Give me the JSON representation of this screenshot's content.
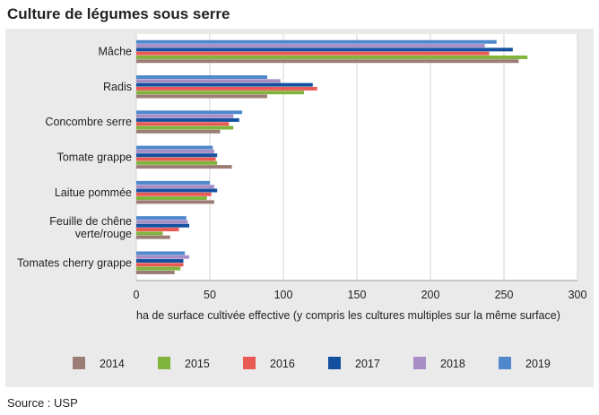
{
  "title": "Culture de légumes sous serre",
  "source": "Source : USP",
  "chart_data": {
    "type": "bar",
    "orientation": "horizontal",
    "title": "Culture de légumes sous serre",
    "xlabel": "ha de surface cultivée effective (y compris les cultures multiples sur la même surface)",
    "ylabel": "",
    "xlim": [
      0,
      300
    ],
    "xticks": [
      0,
      50,
      100,
      150,
      200,
      250,
      300
    ],
    "grid": true,
    "legend_position": "bottom",
    "categories": [
      [
        "Mâche"
      ],
      [
        "Radis"
      ],
      [
        "Concombre serre"
      ],
      [
        "Tomate grappe"
      ],
      [
        "Laitue pommée"
      ],
      [
        "Feuille de chêne",
        "verte/rouge"
      ],
      [
        "Tomates cherry grappe"
      ]
    ],
    "series": [
      {
        "name": "2014",
        "color": "#9c7d76",
        "values": [
          260,
          89,
          57,
          65,
          53,
          23,
          26
        ]
      },
      {
        "name": "2015",
        "color": "#80b43c",
        "values": [
          266,
          114,
          66,
          55,
          48,
          18,
          30
        ]
      },
      {
        "name": "2016",
        "color": "#ea5a55",
        "values": [
          240,
          123,
          63,
          54,
          51,
          29,
          32
        ]
      },
      {
        "name": "2017",
        "color": "#1450a0",
        "values": [
          256,
          120,
          70,
          55,
          55,
          36,
          32
        ]
      },
      {
        "name": "2018",
        "color": "#a78fc6",
        "values": [
          237,
          98,
          66,
          53,
          53,
          35,
          36
        ]
      },
      {
        "name": "2019",
        "color": "#4f88cc",
        "values": [
          245,
          89,
          72,
          52,
          50,
          34,
          33
        ]
      }
    ]
  }
}
